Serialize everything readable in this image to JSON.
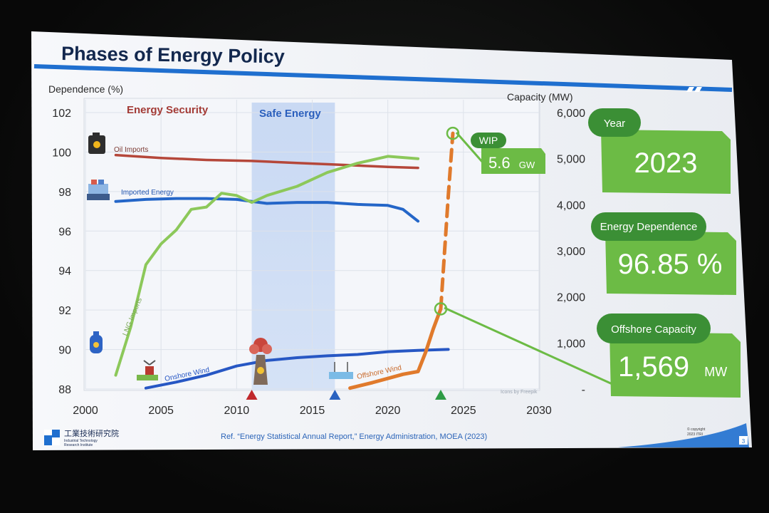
{
  "slide": {
    "title": "Phases of Energy Policy",
    "reference": "Ref. “Energy Statistical Annual Report,” Energy Administration, MOEA (2023)",
    "logo_chinese": "工業技術研究院",
    "logo_english_1": "Industrial Technology",
    "logo_english_2": "Research Institute",
    "copyright_1": "© copyright",
    "copyright_2": "2023 ITRI",
    "page_number": "3",
    "icons_credit": "Icons by Freepik"
  },
  "side_panel": {
    "year_label": "Year",
    "year_value": "2023",
    "dependence_label": "Energy Dependence",
    "dependence_value": "96.85 %",
    "capacity_label": "Offshore Capacity",
    "capacity_value": "1,569",
    "capacity_unit": "MW"
  },
  "colors": {
    "accent_blue": "#1f6fcf",
    "callout_green": "#6cbb45",
    "oil": "#b5473a",
    "imported": "#2466c8",
    "lng": "#8cc85a",
    "onshore": "#2757c4",
    "offshore": "#e07a2c",
    "phase_security": "#a33b36",
    "phase_safe": "#2a5fbd",
    "marker_2011": "#c0282c",
    "marker_2016": "#2a62c0",
    "marker_2023": "#2e9b45"
  },
  "chart_data": {
    "type": "line",
    "xlim": [
      2000,
      2030
    ],
    "x_ticks": [
      "2000",
      "2005",
      "2010",
      "2015",
      "2020",
      "2025",
      "2030"
    ],
    "ylabel": "Dependence (%)",
    "ylim": [
      88,
      102
    ],
    "y_ticks": [
      "88",
      "90",
      "92",
      "94",
      "96",
      "98",
      "100",
      "102"
    ],
    "ylabel_right": "Capacity (MW)",
    "ylim_right": [
      0,
      6000
    ],
    "y_ticks_right": [
      "-",
      "1,000",
      "2,000",
      "3,000",
      "4,000",
      "5,000",
      "6,000"
    ],
    "grid": true,
    "phases": [
      {
        "label": "Energy Security",
        "x_range": [
          2002,
          2011
        ]
      },
      {
        "label": "Safe Energy",
        "x_range": [
          2011,
          2016.5
        ]
      }
    ],
    "markers": [
      {
        "x": 2011,
        "meaning": "nuclear"
      },
      {
        "x": 2016.5,
        "meaning": "offshore wind"
      },
      {
        "x": 2023.5,
        "meaning": "current"
      }
    ],
    "series": [
      {
        "name": "Oil Imports",
        "axis": "left",
        "x": [
          2002,
          2005,
          2008,
          2011,
          2014,
          2017,
          2020,
          2022
        ],
        "values": [
          99.85,
          99.7,
          99.6,
          99.55,
          99.45,
          99.35,
          99.25,
          99.2
        ]
      },
      {
        "name": "Imported Energy",
        "axis": "left",
        "x": [
          2002,
          2004,
          2006,
          2008,
          2010,
          2012,
          2014,
          2016,
          2018,
          2020,
          2021,
          2022
        ],
        "values": [
          97.5,
          97.6,
          97.65,
          97.65,
          97.6,
          97.4,
          97.45,
          97.45,
          97.35,
          97.3,
          97.1,
          96.5
        ]
      },
      {
        "name": "LNG Imports",
        "axis": "right",
        "x": [
          2002,
          2003,
          2004,
          2005,
          2006,
          2007,
          2008,
          2009,
          2010,
          2011,
          2012,
          2014,
          2016,
          2018,
          2020,
          2022
        ],
        "values": [
          300,
          1350,
          2700,
          3150,
          3450,
          3900,
          3950,
          4250,
          4200,
          4050,
          4200,
          4400,
          4700,
          4900,
          5050,
          5000
        ]
      },
      {
        "name": "Onshore Wind",
        "axis": "right",
        "x": [
          2004,
          2006,
          2008,
          2010,
          2012,
          2014,
          2016,
          2018,
          2020,
          2022,
          2024
        ],
        "values": [
          20,
          150,
          300,
          500,
          620,
          680,
          720,
          750,
          810,
          840,
          860
        ]
      },
      {
        "name": "Offshore Wind",
        "axis": "right",
        "x": [
          2017.5,
          2019,
          2020,
          2021,
          2022,
          2022.5,
          2023,
          2023.5
        ],
        "values": [
          20,
          140,
          230,
          320,
          380,
          800,
          1300,
          1740
        ]
      },
      {
        "name": "WIP",
        "axis": "right",
        "x": [
          2023.5,
          2024,
          2024.3
        ],
        "values": [
          1740,
          4200,
          5550
        ]
      }
    ],
    "annotations": [
      {
        "label": "WIP",
        "value": "5.6",
        "unit": "GW"
      }
    ]
  }
}
